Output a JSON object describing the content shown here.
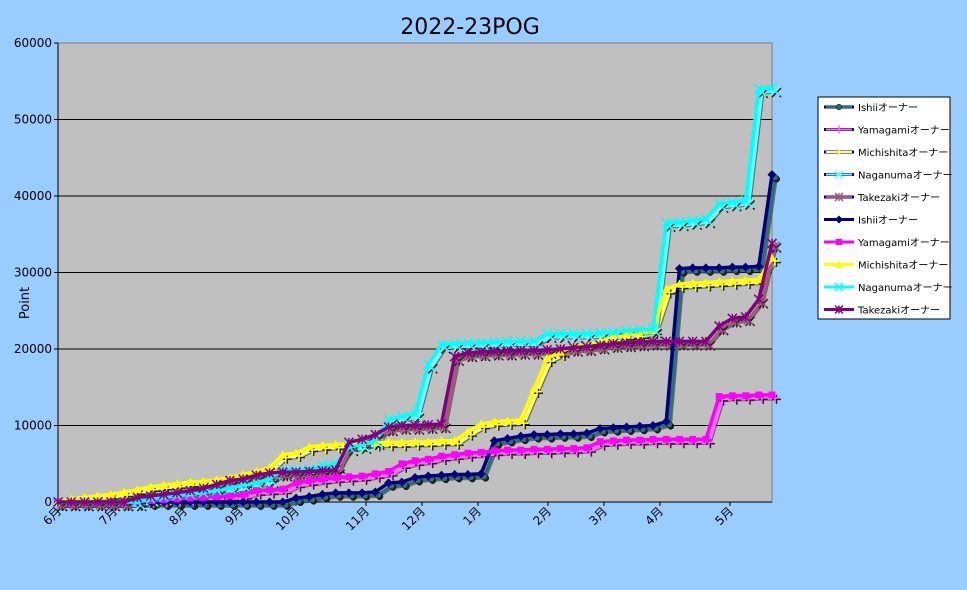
{
  "chart_data": {
    "type": "line",
    "title": "2022-23POG",
    "xlabel": "",
    "ylabel": "Point",
    "ylim": [
      0,
      60000
    ],
    "y_ticks": [
      "0",
      "10000",
      "20000",
      "30000",
      "40000",
      "50000",
      "60000"
    ],
    "grid": "horizontal",
    "legend_position": "right",
    "x_range": [
      0,
      51
    ],
    "x_ticks": [
      {
        "label": "6月",
        "x": 0
      },
      {
        "label": "7月",
        "x": 4
      },
      {
        "label": "8月",
        "x": 9
      },
      {
        "label": "9月",
        "x": 13
      },
      {
        "label": "10月",
        "x": 17
      },
      {
        "label": "11月",
        "x": 22
      },
      {
        "label": "12月",
        "x": 26
      },
      {
        "label": "1月",
        "x": 30
      },
      {
        "label": "2月",
        "x": 35
      },
      {
        "label": "3月",
        "x": 39
      },
      {
        "label": "4月",
        "x": 43
      },
      {
        "label": "5月",
        "x": 48
      }
    ],
    "series": [
      {
        "name": "Ishiiオーナー",
        "color": "#2f6f73",
        "marker": "circle",
        "shadow": true,
        "values": [
          0,
          0,
          0,
          0,
          0,
          0,
          0,
          0,
          0,
          0,
          0,
          0,
          0,
          0,
          0,
          0,
          0,
          0,
          500,
          700,
          1000,
          1200,
          1200,
          1200,
          1300,
          2500,
          2600,
          3200,
          3400,
          3500,
          3600,
          3600,
          3700,
          8000,
          8300,
          8600,
          8800,
          8800,
          8900,
          8900,
          9000,
          9600,
          9700,
          9800,
          9900,
          10000,
          10500,
          30500,
          30600,
          30600,
          30600,
          30700,
          30700,
          30800,
          42800
        ]
      },
      {
        "name": "Yamagamiオーナー",
        "color": "#ff66ff",
        "marker": "plus",
        "shadow": true,
        "values": [
          0,
          0,
          0,
          0,
          0,
          0,
          0,
          200,
          300,
          400,
          500,
          600,
          700,
          800,
          1000,
          1500,
          1600,
          1700,
          2500,
          2800,
          3000,
          3200,
          3300,
          3400,
          3700,
          4000,
          5000,
          5400,
          5600,
          6000,
          6200,
          6400,
          6500,
          6700,
          6800,
          6800,
          6900,
          6900,
          7000,
          7000,
          7100,
          7900,
          8000,
          8100,
          8100,
          8200,
          8200,
          8200,
          8200,
          8200,
          13800,
          13900,
          13900,
          14000,
          14000
        ]
      },
      {
        "name": "Michishitaオーナー",
        "color": "#ffff66",
        "marker": "plus",
        "shadow": true,
        "values": [
          0,
          400,
          600,
          800,
          1000,
          1300,
          1600,
          2000,
          2200,
          2400,
          2600,
          2700,
          2900,
          3200,
          3600,
          4000,
          4500,
          6200,
          6400,
          7200,
          7400,
          7500,
          7600,
          7700,
          7800,
          7800,
          7800,
          7900,
          7900,
          8000,
          8000,
          9200,
          10200,
          10500,
          10600,
          10700,
          14800,
          18800,
          19600,
          20400,
          20500,
          21000,
          21500,
          21800,
          22000,
          22500,
          27800,
          28500,
          28600,
          28700,
          28800,
          28900,
          29000,
          29100,
          31900
        ]
      },
      {
        "name": "Naganumaオーナー",
        "color": "#66ffff",
        "marker": "x",
        "shadow": true,
        "values": [
          0,
          0,
          0,
          0,
          0,
          0,
          0,
          400,
          600,
          800,
          1000,
          1200,
          1500,
          1800,
          2200,
          2500,
          3000,
          4200,
          4200,
          4300,
          4800,
          4900,
          7200,
          7500,
          8000,
          10800,
          11200,
          11500,
          18000,
          20600,
          20700,
          20800,
          20800,
          20900,
          21000,
          21000,
          21000,
          22000,
          22000,
          22000,
          22000,
          22100,
          22200,
          22400,
          22500,
          22600,
          36500,
          36600,
          36800,
          37000,
          39000,
          39200,
          39400,
          54000,
          54100
        ]
      },
      {
        "name": "Takezakiオーナー",
        "color": "#a05a7a",
        "marker": "star",
        "shadow": true,
        "values": [
          0,
          0,
          0,
          0,
          0,
          0,
          600,
          800,
          1000,
          1200,
          1500,
          1800,
          2300,
          2800,
          3000,
          3500,
          3800,
          3900,
          3900,
          4000,
          4100,
          4200,
          7800,
          8200,
          8800,
          9800,
          10000,
          10000,
          10100,
          10200,
          19000,
          19500,
          19600,
          19700,
          19700,
          19800,
          19800,
          19900,
          20000,
          20200,
          20300,
          20500,
          20700,
          20800,
          20900,
          21000,
          21000,
          21000,
          21000,
          21000,
          23000,
          24000,
          24200,
          26500,
          33800
        ]
      },
      {
        "name": "Ishiiオーナー",
        "color": "#000080",
        "marker": "diamond",
        "shadow": false,
        "values": [
          0,
          0,
          0,
          0,
          0,
          0,
          0,
          0,
          0,
          0,
          0,
          0,
          0,
          0,
          0,
          0,
          0,
          0,
          500,
          700,
          1000,
          1200,
          1200,
          1200,
          1300,
          2500,
          2600,
          3200,
          3400,
          3500,
          3600,
          3600,
          3700,
          8000,
          8300,
          8600,
          8800,
          8800,
          8900,
          8900,
          9000,
          9600,
          9700,
          9800,
          9900,
          10000,
          10500,
          30500,
          30600,
          30600,
          30600,
          30700,
          30700,
          30800,
          42800
        ]
      },
      {
        "name": "Yamagamiオーナー",
        "color": "#ff00ff",
        "marker": "square",
        "shadow": false,
        "values": [
          0,
          0,
          0,
          0,
          0,
          0,
          0,
          200,
          300,
          400,
          500,
          600,
          700,
          800,
          1000,
          1500,
          1600,
          1700,
          2500,
          2800,
          3000,
          3200,
          3300,
          3400,
          3700,
          4000,
          5000,
          5400,
          5600,
          6000,
          6200,
          6400,
          6500,
          6700,
          6800,
          6800,
          6900,
          6900,
          7000,
          7000,
          7100,
          7900,
          8000,
          8100,
          8100,
          8200,
          8200,
          8200,
          8200,
          8200,
          13800,
          13900,
          13900,
          14000,
          14000
        ]
      },
      {
        "name": "Michishitaオーナー",
        "color": "#ffff00",
        "marker": "triangle",
        "shadow": false,
        "values": [
          0,
          400,
          600,
          800,
          1000,
          1300,
          1600,
          2000,
          2200,
          2400,
          2600,
          2700,
          2900,
          3200,
          3600,
          4000,
          4500,
          6200,
          6400,
          7200,
          7400,
          7500,
          7600,
          7700,
          7800,
          7800,
          7800,
          7900,
          7900,
          8000,
          8000,
          9200,
          10200,
          10500,
          10600,
          10700,
          14800,
          18800,
          19600,
          20400,
          20500,
          21000,
          21500,
          21800,
          22000,
          22500,
          27800,
          28500,
          28600,
          28700,
          28800,
          28900,
          29000,
          29100,
          31900
        ]
      },
      {
        "name": "Naganumaオーナー",
        "color": "#00ffff",
        "marker": "x",
        "shadow": false,
        "values": [
          0,
          0,
          0,
          0,
          0,
          0,
          0,
          400,
          600,
          800,
          1000,
          1200,
          1500,
          1800,
          2200,
          2500,
          3000,
          4200,
          4200,
          4300,
          4800,
          4900,
          7200,
          7500,
          8000,
          10800,
          11200,
          11500,
          18000,
          20600,
          20700,
          20800,
          20800,
          20900,
          21000,
          21000,
          21000,
          22000,
          22000,
          22000,
          22000,
          22100,
          22200,
          22400,
          22500,
          22600,
          36500,
          36600,
          36800,
          37000,
          39000,
          39200,
          39400,
          54000,
          54100
        ]
      },
      {
        "name": "Takezakiオーナー",
        "color": "#800080",
        "marker": "star",
        "shadow": false,
        "values": [
          0,
          0,
          0,
          0,
          0,
          0,
          600,
          800,
          1000,
          1200,
          1500,
          1800,
          2300,
          2800,
          3000,
          3500,
          3800,
          3900,
          3900,
          4000,
          4100,
          4200,
          7800,
          8200,
          8800,
          9800,
          10000,
          10000,
          10100,
          10200,
          19000,
          19500,
          19600,
          19700,
          19700,
          19800,
          19800,
          19900,
          20000,
          20200,
          20300,
          20500,
          20700,
          20800,
          20900,
          21000,
          21000,
          21000,
          21000,
          21000,
          23000,
          24000,
          24200,
          26500,
          33800
        ]
      }
    ]
  }
}
